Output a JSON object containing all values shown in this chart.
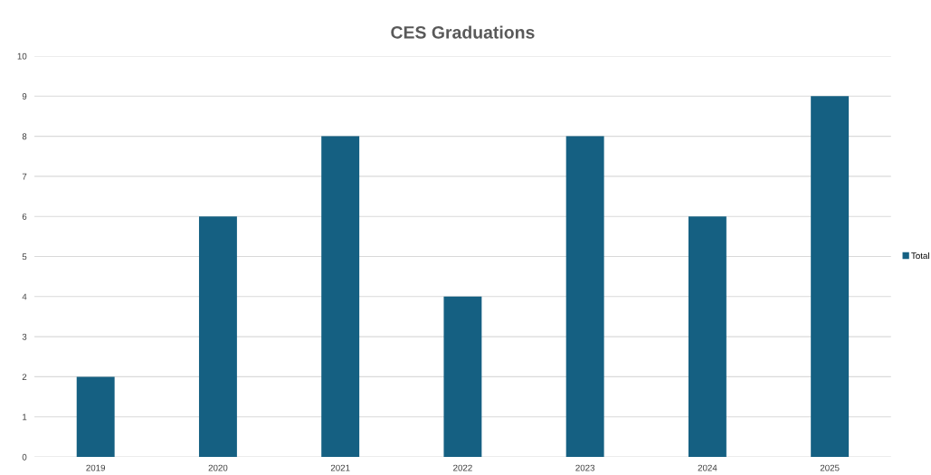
{
  "chart_data": {
    "type": "bar",
    "title": "CES Graduations",
    "categories": [
      "2019",
      "2020",
      "2021",
      "2022",
      "2023",
      "2024",
      "2025"
    ],
    "series": [
      {
        "name": "Total",
        "color": "#156082",
        "values": [
          2,
          6,
          8,
          4,
          8,
          6,
          9
        ]
      }
    ],
    "ylim": [
      0,
      10
    ],
    "yticks": [
      0,
      1,
      2,
      3,
      4,
      5,
      6,
      7,
      8,
      9,
      10
    ],
    "grid": "y",
    "legend": "right"
  }
}
